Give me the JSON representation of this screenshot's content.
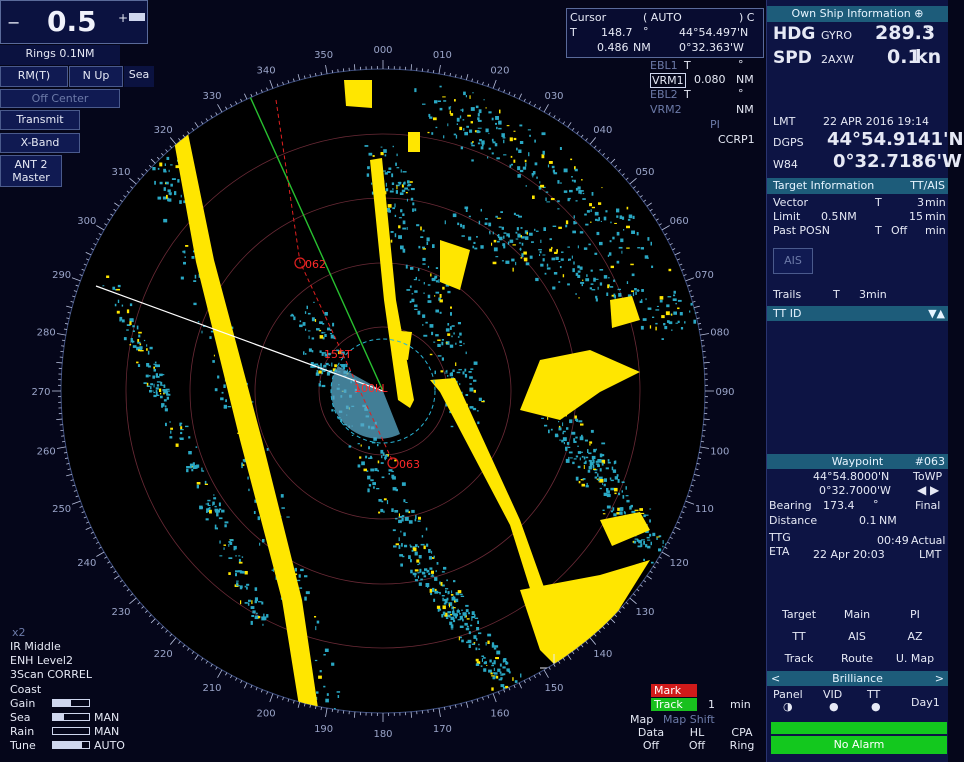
{
  "range": {
    "value": "0.5",
    "minus": "−",
    "plus": "+",
    "rings": "Rings 0.1NM"
  },
  "mode": {
    "motion": "RM(T)",
    "orientation": "N Up",
    "sea": "Sea",
    "center": "Off Center",
    "transmit": "Transmit",
    "band": "X-Band",
    "ant_line1": "ANT 2",
    "ant_line2": "Master"
  },
  "cursor": {
    "title": "Cursor",
    "mode": "( AUTO",
    "mode_end": ") C",
    "t": "T",
    "bearing": "148.7",
    "deg": "°",
    "lat": "44°54.497'N",
    "range": "0.486",
    "range_unit": "NM",
    "lon": "0°32.363'W"
  },
  "ebl": {
    "ebl1": "EBL1",
    "ebl1_t": "T",
    "vrm1": "VRM1",
    "vrm1_val": "0.080",
    "vrm1_unit": "NM",
    "ebl2": "EBL2",
    "ebl2_t": "T",
    "vrm2": "VRM2",
    "vrm2_unit": "NM",
    "deg": "°",
    "pi": "PI",
    "ccrp": "CCRP1"
  },
  "own_ship": {
    "title": "Own Ship Information",
    "hdg_label": "HDG",
    "hdg_src": "GYRO",
    "hdg": "289.3",
    "hdg_unit": "°",
    "spd_label": "SPD",
    "spd_src": "2AXW",
    "spd": "0.1",
    "spd_unit": "kn"
  },
  "time": {
    "lmt": "LMT",
    "date": "22 APR 2016 19:14",
    "dgps": "DGPS",
    "lat": "44°54.9141'N",
    "datum": "W84",
    "lon": "0°32.7186'W"
  },
  "target_info": {
    "title": "Target Information",
    "tag": "TT/AIS",
    "vector": "Vector",
    "vector_t": "T",
    "vector_val": "3",
    "vector_unit": "min",
    "limit": "Limit",
    "limit_nm": "0.5",
    "limit_nm_unit": "NM",
    "limit_min": "15",
    "limit_min_unit": "min",
    "past": "Past POSN",
    "past_t": "T",
    "past_off": "Off",
    "past_unit": "min",
    "ais": "AIS",
    "trails": "Trails",
    "trails_t": "T",
    "trails_val": "3min",
    "tt_id": "TT ID"
  },
  "waypoint": {
    "title": "Waypoint",
    "id": "#063",
    "lat": "44°54.8000'N",
    "towp": "ToWP",
    "lon": "0°32.7000'W",
    "bearing_label": "Bearing",
    "bearing": "173.4",
    "deg": "°",
    "final": "Final",
    "distance_label": "Distance",
    "distance": "0.1",
    "distance_unit": "NM",
    "ttg_label": "TTG",
    "ttg": "00:49",
    "actual": "Actual",
    "eta_label": "ETA",
    "eta": "22 Apr 20:03",
    "lmt": "LMT"
  },
  "menu": {
    "target": "Target",
    "main": "Main",
    "pi": "PI",
    "tt": "TT",
    "ais": "AIS",
    "az": "AZ",
    "track": "Track",
    "route": "Route",
    "umap": "U. Map"
  },
  "brilliance": {
    "title": "Brilliance",
    "left": "<",
    "right": ">",
    "panel": "Panel",
    "vid": "VID",
    "tt": "TT",
    "day": "Day1"
  },
  "alarm": {
    "text": "No Alarm"
  },
  "bottom_left": {
    "x2": "x2",
    "ir": "IR Middle",
    "enh": "ENH Level2",
    "scan": "3Scan CORREL",
    "coast": "Coast",
    "gain": "Gain",
    "sea": "Sea",
    "sea_mode": "MAN",
    "rain": "Rain",
    "rain_mode": "MAN",
    "tune": "Tune",
    "tune_mode": "AUTO",
    "gain_level": 0.5,
    "sea_level": 0.3,
    "rain_level": 0.0,
    "tune_level": 0.8
  },
  "bottom_right": {
    "mark": "Mark",
    "track": "Track",
    "track_val": "1",
    "track_unit": "min",
    "map": "Map",
    "map_shift": "Map Shift",
    "data": "Data",
    "data_state": "Off",
    "hl": "HL",
    "hl_state": "Off",
    "cpa": "CPA",
    "cpa_state": "Ring"
  },
  "bearings": [
    "000",
    "010",
    "020",
    "030",
    "040",
    "050",
    "060",
    "070",
    "080",
    "090",
    "100",
    "110",
    "120",
    "130",
    "140",
    "150",
    "160",
    "170",
    "180",
    "190",
    "200",
    "210",
    "220",
    "230",
    "240",
    "250",
    "260",
    "270",
    "280",
    "290",
    "300",
    "310",
    "320",
    "330",
    "340",
    "350"
  ],
  "markers": {
    "wp1": "062",
    "wp2": "063",
    "vec1": "155T",
    "vec2": "100kL"
  },
  "colors": {
    "echo_yellow": "#ffe600",
    "echo_cyan": "#2aa8c4",
    "alarm_green": "#13c81e",
    "mark_red": "#d01a1a",
    "track_green": "#18c01e"
  }
}
